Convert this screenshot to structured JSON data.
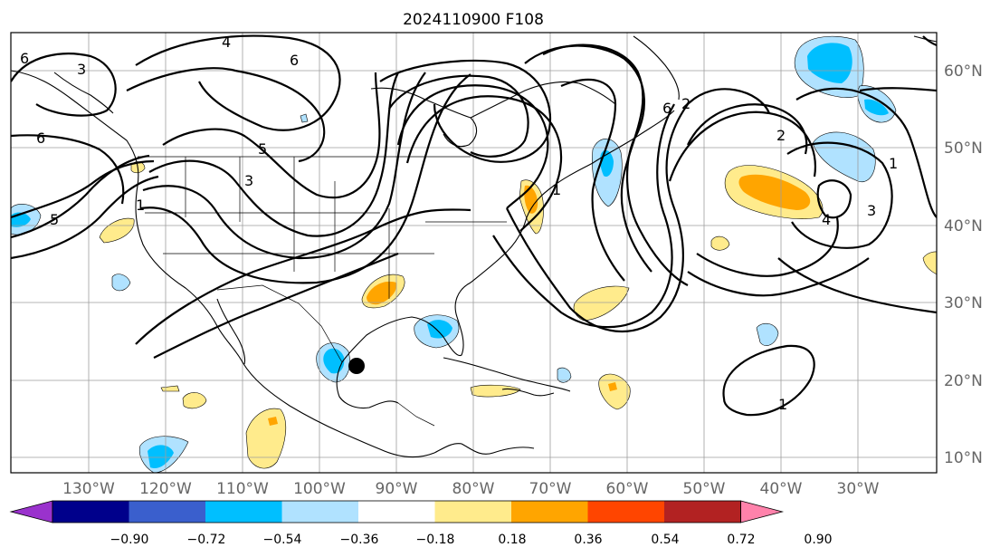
{
  "title": "2024110900 F108",
  "lon_labels": [
    "130°W",
    "120°W",
    "110°W",
    "100°W",
    "90°W",
    "80°W",
    "70°W",
    "60°W",
    "50°W",
    "40°W",
    "30°W"
  ],
  "lat_labels": [
    "60°N",
    "50°N",
    "40°N",
    "30°N",
    "20°N",
    "10°N"
  ],
  "colorbar": {
    "ticks": [
      "−0.90",
      "−0.72",
      "−0.54",
      "−0.36",
      "−0.18",
      "0.18",
      "0.36",
      "0.54",
      "0.72",
      "0.90"
    ],
    "colors": [
      "#9a32cd",
      "#00008b",
      "#3a5fcd",
      "#00bfff",
      "#b0e2ff",
      "#ffffff",
      "#ffeb8c",
      "#ffa500",
      "#ff4500",
      "#b22222",
      "#ff82ab"
    ]
  },
  "contour_labels": [
    "6",
    "3",
    "4",
    "6",
    "6",
    "5",
    "3",
    "1",
    "5",
    "1",
    "2",
    "4",
    "3",
    "1",
    "2",
    "6",
    "1"
  ],
  "marker": "storm-center-dot"
}
